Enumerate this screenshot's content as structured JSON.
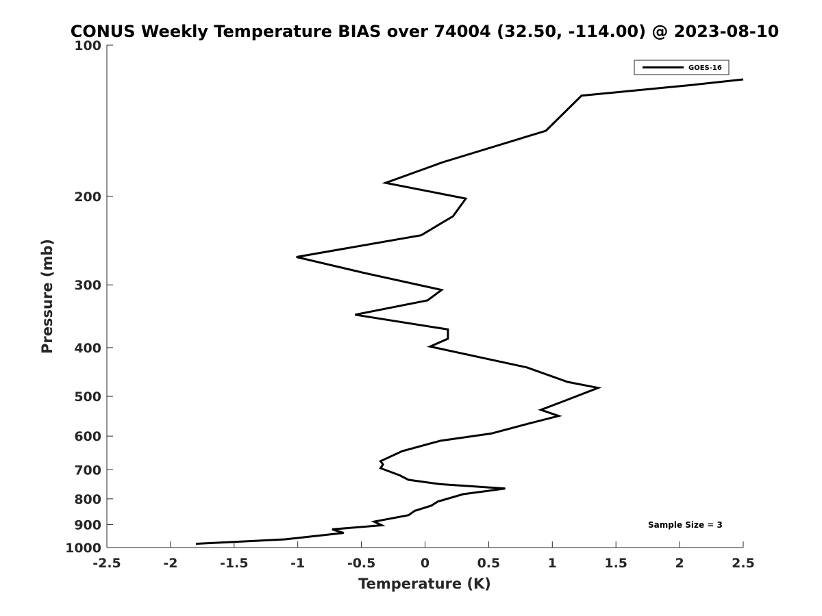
{
  "chart_data": {
    "type": "line",
    "title": "CONUS Weekly Temperature BIAS over 74004 (32.50, -114.00) @ 2023-08-10",
    "xlabel": "Temperature (K)",
    "ylabel": "Pressure (mb)",
    "xlim": [
      -2.5,
      2.5
    ],
    "ylim": [
      100,
      1000
    ],
    "yscale": "log",
    "y_reversed": true,
    "xticks": [
      -2.5,
      -2,
      -1.5,
      -1,
      -0.5,
      0,
      0.5,
      1,
      1.5,
      2,
      2.5
    ],
    "xtick_labels": [
      "-2.5",
      "-2",
      "-1.5",
      "-1",
      "-0.5",
      "0",
      "0.5",
      "1",
      "1.5",
      "2",
      "2.5"
    ],
    "yticks": [
      100,
      200,
      300,
      400,
      500,
      600,
      700,
      800,
      900,
      1000
    ],
    "ytick_labels": [
      "100",
      "200",
      "300",
      "400",
      "500",
      "600",
      "700",
      "800",
      "900",
      "1000"
    ],
    "grid": false,
    "legend_position": "top-right",
    "series": [
      {
        "name": "GOES-16",
        "color": "#000000",
        "x": [
          2.5,
          2.1,
          1.23,
          0.95,
          0.14,
          -0.31,
          0.32,
          0.22,
          -0.03,
          -1.01,
          -0.48,
          0.13,
          0.02,
          -0.55,
          0.18,
          0.18,
          0.04,
          0.8,
          1.12,
          1.36,
          1.1,
          0.91,
          1.05,
          0.81,
          0.52,
          0.12,
          -0.18,
          -0.35,
          -0.33,
          -0.35,
          -0.2,
          -0.13,
          0.12,
          0.63,
          0.3,
          0.1,
          0.05,
          -0.08,
          -0.13,
          -0.4,
          -0.34,
          -0.73,
          -0.64,
          -1.1,
          -1.8
        ],
        "y": [
          117,
          120,
          126,
          148,
          171,
          188,
          202,
          219,
          239,
          264,
          284,
          307,
          322,
          344,
          368,
          384,
          398,
          438,
          468,
          481,
          510,
          532,
          547,
          567,
          593,
          613,
          643,
          673,
          683,
          695,
          718,
          733,
          748,
          763,
          783,
          810,
          825,
          845,
          862,
          888,
          903,
          920,
          935,
          963,
          983
        ]
      }
    ],
    "annotations": [
      "Sample Size = 3"
    ]
  }
}
